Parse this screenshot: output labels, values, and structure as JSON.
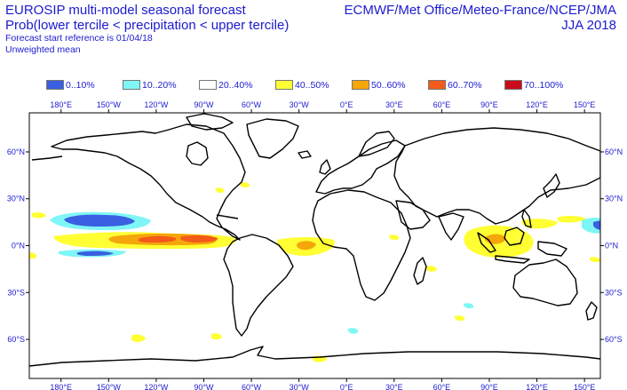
{
  "header": {
    "title_line1": "EUROSIP multi-model seasonal forecast",
    "title_line2": "Prob(lower tercile < precipitation < upper tercile)",
    "title_line3": "Forecast start reference is 01/04/18",
    "title_line4": "Unweighted mean",
    "centres": "ECMWF/Met Office/Meteo-France/NCEP/JMA",
    "season": "JJA 2018"
  },
  "legend": [
    {
      "label": "0..10%",
      "color": "#3a5fe0"
    },
    {
      "label": "10..20%",
      "color": "#7ff6f6"
    },
    {
      "label": "20..40%",
      "color": "#ffffff"
    },
    {
      "label": "40..50%",
      "color": "#ffff33"
    },
    {
      "label": "50..60%",
      "color": "#f4a60a"
    },
    {
      "label": "60..70%",
      "color": "#f45a1a"
    },
    {
      "label": "70..100%",
      "color": "#c80a1a"
    }
  ],
  "axes": {
    "lon_labels": [
      "180°E",
      "150°W",
      "120°W",
      "90°W",
      "60°W",
      "30°W",
      "0°E",
      "30°E",
      "60°E",
      "90°E",
      "120°E",
      "150°E"
    ],
    "lat_labels": [
      "60°N",
      "30°N",
      "0°N",
      "30°S",
      "60°S"
    ],
    "lon_values": [
      -180,
      -150,
      -120,
      -90,
      -60,
      -30,
      0,
      30,
      60,
      90,
      120,
      150
    ],
    "lat_values": [
      60,
      30,
      0,
      -30,
      -60
    ]
  },
  "map": {
    "projection": "equirectangular, Pacific-centred",
    "lon_range": [
      -200,
      160
    ],
    "lat_range": [
      -85,
      85
    ]
  },
  "colors": {
    "coast": "#000000",
    "tick_text": "#1a1ad0",
    "frame": "#000000"
  }
}
